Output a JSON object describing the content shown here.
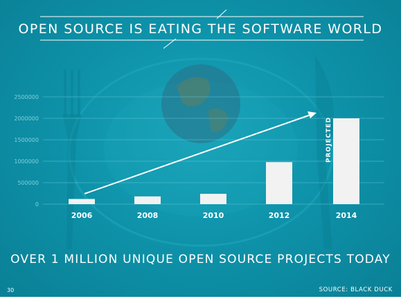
{
  "slide": {
    "title": "OPEN SOURCE IS EATING THE SOFTWARE WORLD",
    "subtitle": "OVER 1 MILLION UNIQUE OPEN SOURCE PROJECTS TODAY",
    "page_number": "30",
    "source": "SOURCE: BLACK DUCK"
  },
  "colors": {
    "background": "#0e93aa",
    "bar": "#f2f2f2",
    "text": "#ffffff",
    "axis_label": "#7fd0dd"
  },
  "chart_data": {
    "type": "bar",
    "categories": [
      "2006",
      "2008",
      "2010",
      "2012",
      "2014"
    ],
    "values": [
      120000,
      180000,
      240000,
      980000,
      2000000
    ],
    "ylim": [
      0,
      2500000
    ],
    "yticks": [
      0,
      500000,
      1000000,
      1500000,
      2000000,
      2500000
    ],
    "ytick_labels": [
      "0",
      "500000",
      "1000000",
      "1500000",
      "2000000",
      "2500000"
    ],
    "grid": true,
    "annotations": {
      "projected_label": "PROJECTED",
      "trend_arrow": "upward trend from 2006 to 2014"
    }
  }
}
